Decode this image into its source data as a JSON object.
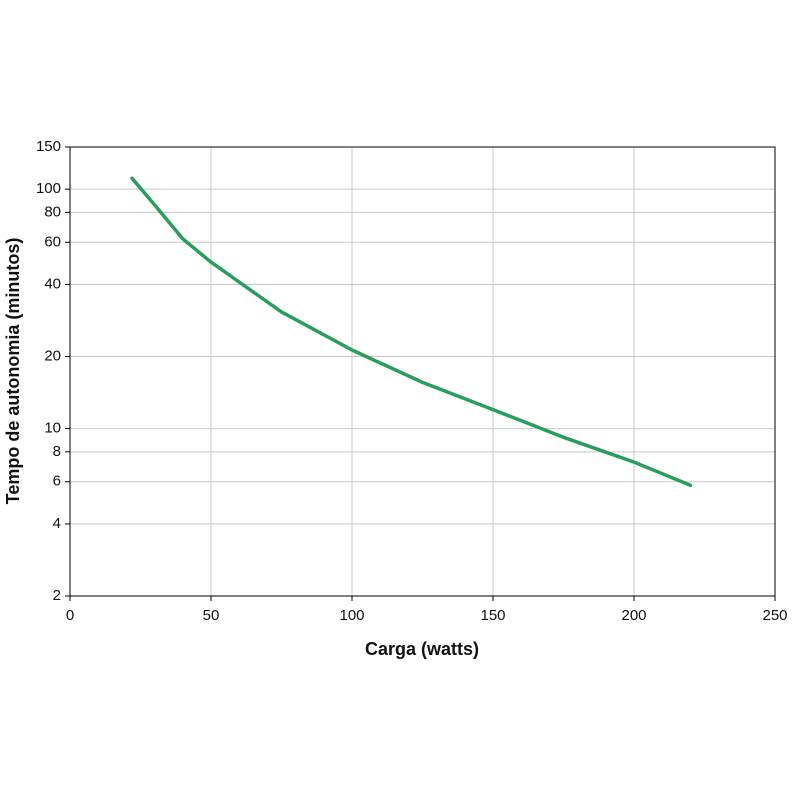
{
  "chart_data": {
    "type": "line",
    "xlabel": "Carga (watts)",
    "ylabel": "Tempo de autonomia (minutos)",
    "x": [
      22,
      30,
      40,
      50,
      75,
      100,
      125,
      150,
      175,
      200,
      220
    ],
    "series": [
      {
        "color": "#2a9d5c",
        "values": [
          111,
          86,
          62,
          49.6,
          30.7,
          21.3,
          15.6,
          12.0,
          9.2,
          7.25,
          5.8
        ]
      }
    ],
    "xlim": [
      0,
      250
    ],
    "xticks": [
      0,
      50,
      100,
      150,
      200,
      250
    ],
    "ylim": [
      2,
      150
    ],
    "yticks": [
      2,
      4,
      6,
      8,
      10,
      20,
      40,
      60,
      80,
      100,
      150
    ],
    "ylog": true,
    "grid": true
  }
}
